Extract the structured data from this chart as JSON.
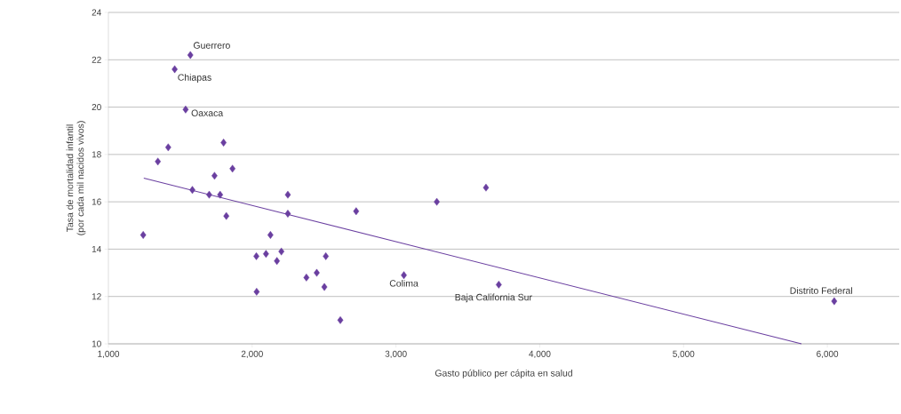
{
  "chart_data": {
    "type": "scatter",
    "xlabel": "Gasto público per cápita en salud",
    "ylabel": "Tasa de mortalidad infantil\n(por cada mil nacidos vivos)",
    "xlim": [
      1000,
      6500
    ],
    "ylim": [
      10,
      24
    ],
    "xticks": [
      {
        "value": 1000,
        "label": "1,000"
      },
      {
        "value": 2000,
        "label": "2,000"
      },
      {
        "value": 3000,
        "label": "3,000"
      },
      {
        "value": 4000,
        "label": "4,000"
      },
      {
        "value": 5000,
        "label": "5,000"
      },
      {
        "value": 6000,
        "label": "6,000"
      }
    ],
    "yticks": [
      10,
      12,
      14,
      16,
      18,
      20,
      22,
      24
    ],
    "grid": "y",
    "marker": "diamond",
    "series": [
      {
        "color": "#6a3fa0",
        "x": [
          1570,
          1461,
          1537,
          1801,
          1416,
          1344,
          1863,
          1738,
          1584,
          1701,
          1777,
          2248,
          2248,
          1820,
          1242,
          2127,
          2029,
          2096,
          2203,
          2172,
          2512,
          2449,
          2377,
          2502,
          2031,
          2613,
          2723,
          3284,
          3626,
          3055,
          3715,
          6048
        ],
        "values": [
          22.2,
          21.6,
          19.9,
          18.5,
          18.3,
          17.7,
          17.4,
          17.1,
          16.5,
          16.3,
          16.3,
          16.3,
          15.5,
          15.4,
          14.6,
          14.6,
          13.7,
          13.8,
          13.9,
          13.5,
          13.7,
          13.0,
          12.8,
          12.4,
          12.2,
          11.0,
          15.6,
          16.0,
          16.6,
          12.9,
          12.5,
          11.8
        ]
      },
      {
        "type": "line",
        "color": "#6a3fa0",
        "marker": "none",
        "line_style": "solid",
        "x": [
          1246,
          5820
        ],
        "values": [
          17.0,
          10
        ]
      }
    ],
    "annotations": [
      {
        "text": "Guerrero",
        "x": 1570,
        "y": 22.2
      },
      {
        "text": "Chiapas",
        "x": 1461,
        "y": 21.6
      },
      {
        "text": "Oaxaca",
        "x": 1537,
        "y": 19.9
      },
      {
        "text": "Colima",
        "x": 3055,
        "y": 12.9
      },
      {
        "text": "Baja California Sur",
        "x": 3715,
        "y": 12.5
      },
      {
        "text": "Distrito Federal",
        "x": 6048,
        "y": 11.8
      }
    ]
  }
}
